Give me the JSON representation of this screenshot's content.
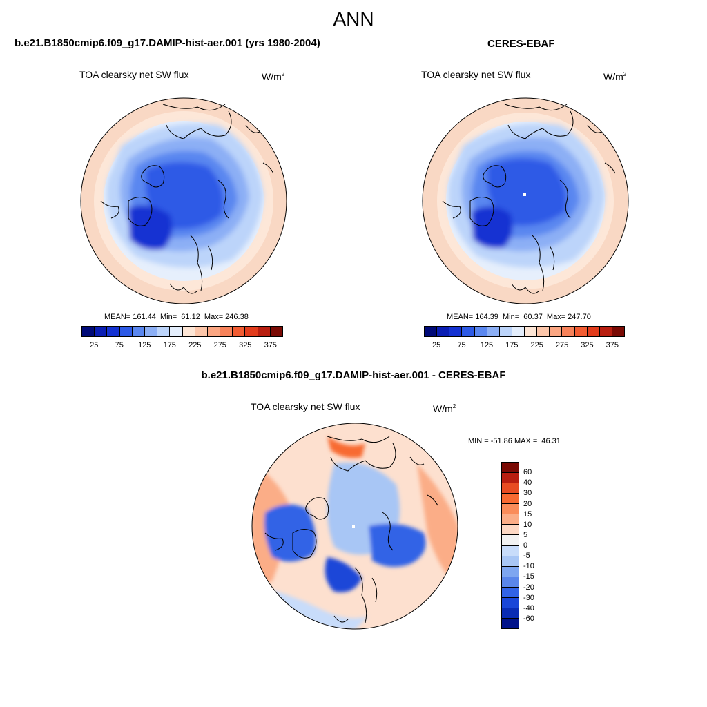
{
  "title": "ANN",
  "panels": [
    {
      "case": "b.e21.B1850cmip6.f09_g17.DAMIP-hist-aer.001 (yrs 1980-2004)",
      "variable": "TOA clearsky net SW flux",
      "units_base": "W/m",
      "units_exp": "2",
      "stats": "MEAN= 161.44  Min=  61.12  Max= 246.38",
      "map": "model"
    },
    {
      "case": "CERES-EBAF",
      "variable": "TOA clearsky net SW flux",
      "units_base": "W/m",
      "units_exp": "2",
      "stats": "MEAN= 164.39  Min=  60.37  Max= 247.70",
      "map": "obs"
    },
    {
      "case": "b.e21.B1850cmip6.f09_g17.DAMIP-hist-aer.001 - CERES-EBAF",
      "variable": "TOA clearsky net SW flux",
      "units_base": "W/m",
      "units_exp": "2",
      "stats": "MIN = -51.86 MAX =  46.31",
      "map": "diff"
    }
  ],
  "abs_colorbar": {
    "colors": [
      "#000a78",
      "#0a1eb4",
      "#1432d2",
      "#2d5ae6",
      "#5a87f0",
      "#8caff5",
      "#bcd4fa",
      "#e4eefc",
      "#fde6d6",
      "#fcc6aa",
      "#fba682",
      "#f7825a",
      "#f25c32",
      "#e23c1c",
      "#b81e10",
      "#7a0a04"
    ],
    "tick_labels": [
      "25",
      "75",
      "125",
      "175",
      "225",
      "275",
      "325",
      "375"
    ]
  },
  "diff_colorbar": {
    "colors": [
      "#7a0a04",
      "#b81e10",
      "#e84c22",
      "#f86a32",
      "#fa8c5a",
      "#fbad87",
      "#fdd8c4",
      "#f2f2f2",
      "#c8dcfa",
      "#a8c6f5",
      "#7ea6f0",
      "#5a86ea",
      "#3263e6",
      "#1a46d8",
      "#0a2cb4",
      "#00128a"
    ],
    "tick_labels": [
      "60",
      "40",
      "30",
      "20",
      "15",
      "10",
      "5",
      "0",
      "-5",
      "-10",
      "-15",
      "-20",
      "-30",
      "-40",
      "-60"
    ]
  }
}
